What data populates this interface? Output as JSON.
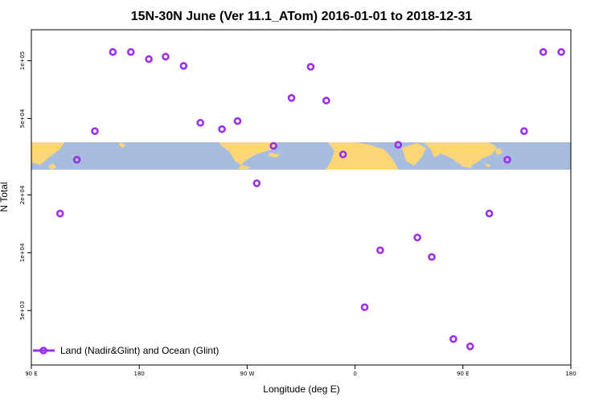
{
  "chart_data": {
    "type": "scatter",
    "title": "15N-30N June (Ver 11.1_ATom)   2016-01-01 to 2018-12-31",
    "xlabel": "Longitude (deg E)",
    "ylabel": "N Total",
    "y_scale": "log",
    "x_ticks": [
      {
        "value": 90,
        "label": "90 E"
      },
      {
        "value": 180,
        "label": "180"
      },
      {
        "value": 270,
        "label": "90 W"
      },
      {
        "value": 360,
        "label": "0"
      },
      {
        "value": 450,
        "label": "90 E"
      },
      {
        "value": 540,
        "label": "180"
      }
    ],
    "y_ticks": [
      {
        "value": 5000,
        "label": "5e+03"
      },
      {
        "value": 10000,
        "label": "1e+04"
      },
      {
        "value": 20000,
        "label": "2e+04"
      },
      {
        "value": 50000,
        "label": "5e+04"
      },
      {
        "value": 100000,
        "label": "1e+05"
      }
    ],
    "xlim": [
      90,
      540
    ],
    "ylim": [
      2600,
      145000
    ],
    "grid": false,
    "legend_position": "bottom-left",
    "map_strip": true,
    "series": [
      {
        "name": "Land (Nadir&Glint) and Ocean (Glint)",
        "color": "#9b30e8",
        "marker": "ring",
        "points": [
          {
            "x": 114,
            "y": 16000
          },
          {
            "x": 128,
            "y": 30500
          },
          {
            "x": 143,
            "y": 43000
          },
          {
            "x": 158,
            "y": 111000
          },
          {
            "x": 173,
            "y": 111000
          },
          {
            "x": 188,
            "y": 102000
          },
          {
            "x": 202,
            "y": 105000
          },
          {
            "x": 217,
            "y": 94000
          },
          {
            "x": 231,
            "y": 47500
          },
          {
            "x": 249,
            "y": 44000
          },
          {
            "x": 262,
            "y": 48500
          },
          {
            "x": 278,
            "y": 23000
          },
          {
            "x": 292,
            "y": 36000
          },
          {
            "x": 307,
            "y": 64000
          },
          {
            "x": 323,
            "y": 93000
          },
          {
            "x": 336,
            "y": 62000
          },
          {
            "x": 350,
            "y": 32500
          },
          {
            "x": 368,
            "y": 5200
          },
          {
            "x": 381,
            "y": 10300
          },
          {
            "x": 396,
            "y": 36500
          },
          {
            "x": 412,
            "y": 12000
          },
          {
            "x": 424,
            "y": 9500
          },
          {
            "x": 442,
            "y": 3550
          },
          {
            "x": 456,
            "y": 3250
          },
          {
            "x": 472,
            "y": 16000
          },
          {
            "x": 487,
            "y": 30500
          },
          {
            "x": 501,
            "y": 43000
          },
          {
            "x": 517,
            "y": 111000
          },
          {
            "x": 532,
            "y": 111000
          }
        ]
      }
    ]
  }
}
